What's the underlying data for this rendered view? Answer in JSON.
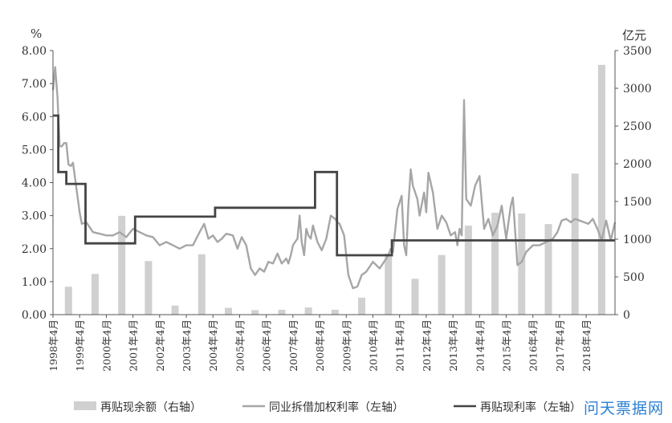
{
  "chart_data": {
    "type": "bar+line",
    "left_axis": {
      "unit": "%",
      "ylim": [
        0,
        8
      ],
      "ticks": [
        "0.00",
        "1.00",
        "2.00",
        "3.00",
        "4.00",
        "5.00",
        "6.00",
        "7.00",
        "8.00"
      ]
    },
    "right_axis": {
      "unit": "亿元",
      "ylim": [
        0,
        3500
      ],
      "ticks": [
        "0",
        "500",
        "1000",
        "1500",
        "2000",
        "2500",
        "3000",
        "3500"
      ]
    },
    "x_ticks": [
      "1998年4月",
      "1999年4月",
      "2000年4月",
      "2001年4月",
      "2002年4月",
      "2003年4月",
      "2004年4月",
      "2005年4月",
      "2006年4月",
      "2007年4月",
      "2008年4月",
      "2009年4月",
      "2010年4月",
      "2011年4月",
      "2012年4月",
      "2013年4月",
      "2014年4月",
      "2015年4月",
      "2016年4月",
      "2017年4月",
      "2018年4月"
    ],
    "x_range": [
      1998.25,
      2019.33
    ],
    "legend": {
      "position": "bottom",
      "items": [
        "再贴现余额（右轴）",
        "同业拆借加权利率（左轴）",
        "再贴现利率（左轴）"
      ]
    },
    "colors": {
      "bars": "#d0d0d0",
      "interbank": "#a6a6a6",
      "rediscount": "#444444",
      "axis": "#555555"
    },
    "series": [
      {
        "name": "再贴现余额（右轴）",
        "type": "bar",
        "axis": "right",
        "x": [
          1998.83,
          1999.83,
          2000.83,
          2001.83,
          2002.83,
          2003.83,
          2004.83,
          2005.83,
          2006.83,
          2007.83,
          2008.83,
          2009.83,
          2010.83,
          2011.83,
          2012.83,
          2013.83,
          2014.83,
          2015.83,
          2016.83,
          2017.83,
          2018.83
        ],
        "values": [
          370,
          540,
          1310,
          710,
          120,
          800,
          90,
          60,
          65,
          95,
          65,
          225,
          810,
          475,
          790,
          1180,
          1350,
          1340,
          1200,
          1870,
          3310
        ]
      },
      {
        "name": "同业拆借加权利率（左轴）",
        "type": "line",
        "axis": "left",
        "x": [
          1998.25,
          1998.33,
          1998.42,
          1998.5,
          1998.58,
          1998.67,
          1998.75,
          1998.83,
          1998.92,
          1999.0,
          1999.25,
          1999.33,
          1999.5,
          1999.75,
          2000.0,
          2000.25,
          2000.5,
          2000.75,
          2001.0,
          2001.25,
          2001.5,
          2001.75,
          2002.0,
          2002.25,
          2002.5,
          2002.75,
          2003.0,
          2003.25,
          2003.5,
          2003.75,
          2003.92,
          2004.08,
          2004.25,
          2004.42,
          2004.58,
          2004.75,
          2005.0,
          2005.17,
          2005.33,
          2005.5,
          2005.67,
          2005.83,
          2006.0,
          2006.17,
          2006.33,
          2006.5,
          2006.67,
          2006.83,
          2007.0,
          2007.08,
          2007.17,
          2007.25,
          2007.33,
          2007.42,
          2007.5,
          2007.58,
          2007.67,
          2007.75,
          2007.83,
          2007.92,
          2008.0,
          2008.17,
          2008.33,
          2008.5,
          2008.67,
          2008.83,
          2008.92,
          2009.0,
          2009.17,
          2009.33,
          2009.5,
          2009.67,
          2009.83,
          2010.0,
          2010.25,
          2010.5,
          2010.67,
          2010.83,
          2010.92,
          2011.0,
          2011.17,
          2011.33,
          2011.42,
          2011.5,
          2011.58,
          2011.67,
          2011.75,
          2011.92,
          2012.0,
          2012.17,
          2012.25,
          2012.33,
          2012.5,
          2012.67,
          2012.83,
          2013.0,
          2013.17,
          2013.33,
          2013.42,
          2013.5,
          2013.58,
          2013.67,
          2013.75,
          2013.92,
          2014.08,
          2014.25,
          2014.42,
          2014.58,
          2014.75,
          2014.92,
          2015.08,
          2015.25,
          2015.42,
          2015.5,
          2015.67,
          2015.83,
          2016.0,
          2016.25,
          2016.5,
          2016.75,
          2017.0,
          2017.17,
          2017.33,
          2017.5,
          2017.67,
          2017.83,
          2018.0,
          2018.17,
          2018.33,
          2018.5,
          2018.67,
          2018.83,
          2019.0,
          2019.17,
          2019.33
        ],
        "values": [
          6.8,
          7.5,
          6.6,
          5.1,
          5.1,
          5.2,
          5.2,
          4.55,
          4.5,
          4.6,
          3.1,
          2.75,
          2.8,
          2.5,
          2.45,
          2.4,
          2.4,
          2.5,
          2.35,
          2.6,
          2.5,
          2.4,
          2.35,
          2.1,
          2.2,
          2.1,
          2.0,
          2.1,
          2.1,
          2.5,
          2.75,
          2.3,
          2.4,
          2.2,
          2.3,
          2.45,
          2.4,
          2.0,
          2.35,
          2.1,
          1.4,
          1.2,
          1.4,
          1.3,
          1.6,
          1.55,
          1.85,
          1.55,
          1.7,
          1.55,
          1.8,
          2.1,
          2.2,
          2.3,
          3.0,
          2.2,
          1.8,
          2.6,
          2.4,
          2.3,
          2.7,
          2.2,
          1.95,
          2.3,
          3.0,
          2.9,
          2.8,
          2.75,
          2.4,
          1.2,
          0.8,
          0.85,
          1.2,
          1.3,
          1.6,
          1.4,
          1.6,
          1.8,
          2.0,
          1.9,
          3.2,
          3.6,
          2.1,
          1.8,
          3.3,
          4.4,
          3.9,
          3.5,
          3.0,
          3.7,
          3.1,
          4.3,
          3.7,
          2.6,
          3.0,
          2.8,
          2.4,
          2.5,
          2.1,
          2.6,
          2.4,
          6.5,
          3.5,
          3.3,
          3.9,
          4.2,
          2.6,
          2.9,
          2.4,
          2.7,
          3.3,
          2.3,
          3.3,
          3.55,
          1.5,
          1.6,
          1.9,
          2.1,
          2.1,
          2.2,
          2.3,
          2.5,
          2.85,
          2.9,
          2.8,
          2.9,
          2.85,
          2.8,
          2.75,
          2.9,
          2.6,
          2.25,
          2.85,
          2.25,
          2.8
        ]
      },
      {
        "name": "再贴现利率（左轴）",
        "type": "step",
        "axis": "left",
        "x": [
          1998.25,
          1998.45,
          1998.75,
          1999.0,
          1999.47,
          2001.33,
          2004.33,
          2008.08,
          2008.9,
          2010.96,
          2019.33
        ],
        "values": [
          6.03,
          4.32,
          3.96,
          3.96,
          2.16,
          2.97,
          3.24,
          4.32,
          1.8,
          2.25,
          2.25
        ]
      }
    ]
  }
}
